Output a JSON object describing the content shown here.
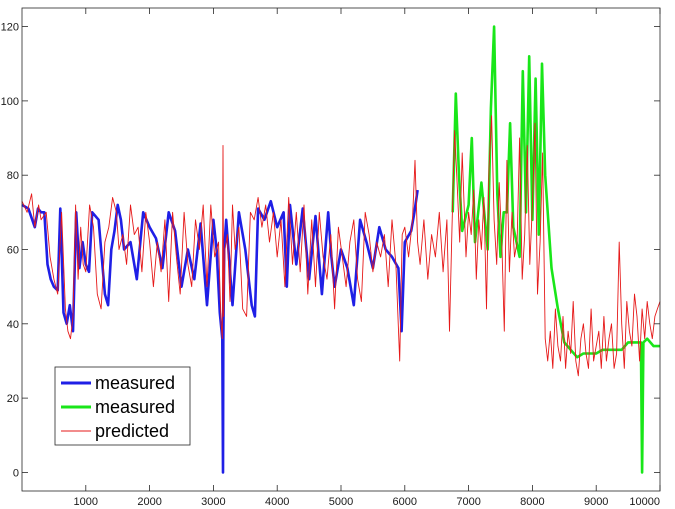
{
  "chart_data": {
    "type": "line",
    "xlim": [
      0,
      10000
    ],
    "ylim": [
      -5,
      125
    ],
    "xticks": [
      1000,
      2000,
      3000,
      4000,
      5000,
      6000,
      7000,
      8000,
      9000,
      10000
    ],
    "yticks": [
      0,
      20,
      40,
      60,
      80,
      100,
      120
    ],
    "grid": false,
    "legend_position": "bottom-left",
    "series": [
      {
        "name": "measured",
        "color": "#1f1fe6",
        "x": [
          0,
          100,
          200,
          250,
          300,
          350,
          400,
          450,
          500,
          560,
          600,
          650,
          700,
          750,
          800,
          850,
          900,
          950,
          1000,
          1050,
          1100,
          1200,
          1300,
          1350,
          1400,
          1450,
          1500,
          1550,
          1600,
          1700,
          1800,
          1900,
          2000,
          2100,
          2200,
          2300,
          2400,
          2500,
          2600,
          2700,
          2800,
          2900,
          3000,
          3050,
          3100,
          3140,
          3150,
          3155,
          3170,
          3200,
          3300,
          3400,
          3500,
          3600,
          3650,
          3700,
          3800,
          3900,
          4000,
          4100,
          4150,
          4200,
          4300,
          4400,
          4500,
          4600,
          4700,
          4800,
          4850,
          4900,
          5000,
          5100,
          5200,
          5300,
          5400,
          5500,
          5600,
          5700,
          5800,
          5900,
          5950,
          6000,
          6100,
          6150,
          6200
        ],
        "y": [
          72,
          71,
          66,
          71,
          70,
          70,
          56,
          52,
          50,
          49,
          71,
          43,
          40,
          45,
          38,
          70,
          55,
          62,
          56,
          54,
          70,
          68,
          48,
          45,
          60,
          65,
          72,
          68,
          60,
          62,
          52,
          70,
          66,
          63,
          55,
          70,
          65,
          50,
          60,
          52,
          67,
          45,
          68,
          60,
          43,
          36,
          0,
          35,
          60,
          68,
          45,
          70,
          60,
          45,
          42,
          71,
          68,
          73,
          66,
          70,
          50,
          72,
          56,
          71,
          52,
          69,
          48,
          70,
          58,
          50,
          60,
          55,
          45,
          68,
          62,
          55,
          66,
          60,
          58,
          55,
          38,
          62,
          65,
          70,
          76
        ]
      },
      {
        "name": "measured",
        "color": "#19e619",
        "x": [
          6750,
          6800,
          6850,
          6900,
          7000,
          7050,
          7100,
          7200,
          7300,
          7350,
          7400,
          7450,
          7500,
          7550,
          7600,
          7650,
          7700,
          7750,
          7800,
          7850,
          7900,
          7950,
          8000,
          8050,
          8100,
          8150,
          8200,
          8300,
          8400,
          8500,
          8600,
          8700,
          8800,
          8900,
          9000,
          9100,
          9200,
          9300,
          9400,
          9500,
          9600,
          9650,
          9700,
          9720,
          9740,
          9800,
          9900,
          10000
        ],
        "y": [
          70,
          102,
          80,
          65,
          72,
          90,
          62,
          78,
          60,
          98,
          120,
          75,
          58,
          70,
          70,
          94,
          66,
          62,
          58,
          108,
          70,
          112,
          68,
          106,
          64,
          110,
          80,
          55,
          44,
          35,
          33,
          31,
          32,
          32,
          32,
          33,
          33,
          33,
          33,
          35,
          35,
          35,
          35,
          0,
          35,
          36,
          34,
          34
        ]
      },
      {
        "name": "predicted",
        "color": "#e61919",
        "x": [
          0,
          80,
          150,
          200,
          260,
          300,
          380,
          440,
          500,
          560,
          620,
          680,
          720,
          760,
          800,
          840,
          880,
          920,
          960,
          1000,
          1060,
          1120,
          1180,
          1240,
          1300,
          1360,
          1420,
          1480,
          1520,
          1580,
          1640,
          1700,
          1760,
          1820,
          1880,
          1940,
          2000,
          2060,
          2120,
          2180,
          2240,
          2300,
          2360,
          2420,
          2480,
          2540,
          2600,
          2660,
          2720,
          2780,
          2840,
          2900,
          2960,
          3020,
          3080,
          3120,
          3140,
          3150,
          3160,
          3180,
          3220,
          3260,
          3300,
          3340,
          3400,
          3460,
          3520,
          3580,
          3640,
          3700,
          3760,
          3820,
          3880,
          3940,
          4000,
          4060,
          4120,
          4180,
          4240,
          4300,
          4360,
          4420,
          4480,
          4540,
          4600,
          4660,
          4720,
          4780,
          4840,
          4900,
          4960,
          5020,
          5080,
          5140,
          5200,
          5260,
          5320,
          5380,
          5440,
          5500,
          5560,
          5620,
          5680,
          5740,
          5800,
          5860,
          5920,
          5960,
          6000,
          6060,
          6120,
          6160,
          6200,
          6240,
          6300,
          6360,
          6420,
          6480,
          6540,
          6600,
          6660,
          6700,
          6740,
          6780,
          6820,
          6860,
          6900,
          6960,
          7000,
          7040,
          7080,
          7120,
          7160,
          7200,
          7240,
          7280,
          7320,
          7360,
          7400,
          7440,
          7480,
          7520,
          7560,
          7600,
          7640,
          7680,
          7720,
          7760,
          7800,
          7840,
          7880,
          7920,
          7960,
          8000,
          8040,
          8080,
          8120,
          8160,
          8200,
          8240,
          8280,
          8320,
          8360,
          8400,
          8440,
          8480,
          8520,
          8560,
          8600,
          8640,
          8680,
          8720,
          8760,
          8800,
          8840,
          8880,
          8920,
          8960,
          9000,
          9040,
          9080,
          9120,
          9160,
          9200,
          9240,
          9280,
          9320,
          9360,
          9400,
          9440,
          9480,
          9520,
          9560,
          9600,
          9640,
          9680,
          9720,
          9760,
          9800,
          9840,
          9880,
          9920,
          9960,
          10000
        ],
        "y": [
          73,
          70,
          75,
          66,
          72,
          68,
          70,
          58,
          52,
          48,
          70,
          44,
          38,
          36,
          42,
          72,
          52,
          66,
          56,
          54,
          72,
          66,
          48,
          44,
          62,
          66,
          74,
          70,
          60,
          64,
          56,
          72,
          64,
          66,
          54,
          70,
          62,
          50,
          62,
          54,
          68,
          46,
          70,
          58,
          48,
          70,
          56,
          50,
          68,
          60,
          72,
          50,
          72,
          58,
          62,
          40,
          36,
          88,
          42,
          60,
          64,
          46,
          72,
          60,
          66,
          44,
          42,
          70,
          68,
          74,
          66,
          72,
          62,
          70,
          58,
          68,
          50,
          74,
          56,
          70,
          54,
          72,
          48,
          68,
          50,
          70,
          58,
          52,
          64,
          44,
          66,
          58,
          50,
          62,
          68,
          52,
          46,
          70,
          64,
          54,
          62,
          58,
          64,
          50,
          68,
          56,
          30,
          64,
          66,
          58,
          68,
          84,
          62,
          56,
          68,
          52,
          64,
          58,
          70,
          54,
          68,
          38,
          66,
          92,
          78,
          62,
          86,
          58,
          70,
          64,
          76,
          52,
          68,
          60,
          74,
          44,
          82,
          96,
          68,
          56,
          78,
          62,
          38,
          84,
          54,
          70,
          58,
          62,
          90,
          52,
          64,
          88,
          56,
          72,
          94,
          48,
          62,
          86,
          36,
          30,
          38,
          28,
          44,
          34,
          30,
          42,
          28,
          38,
          32,
          46,
          30,
          26,
          36,
          40,
          32,
          28,
          44,
          30,
          34,
          38,
          28,
          42,
          30,
          36,
          40,
          28,
          32,
          62,
          40,
          28,
          46,
          38,
          34,
          48,
          42,
          30,
          44,
          36,
          46,
          40,
          36,
          42,
          44,
          46
        ]
      }
    ]
  }
}
